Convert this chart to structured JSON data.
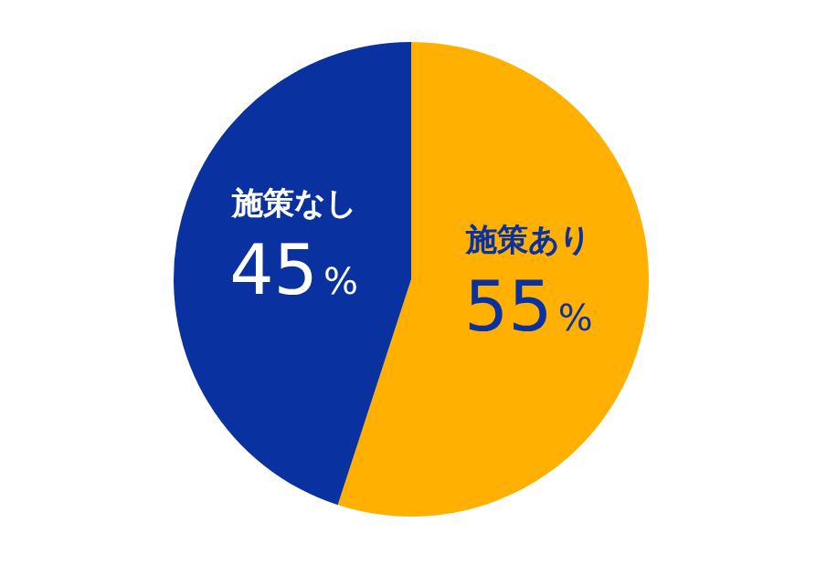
{
  "chart_data": {
    "type": "pie",
    "categories": [
      "施策あり",
      "施策なし"
    ],
    "values": [
      55,
      45
    ],
    "colors": [
      "#ffb000",
      "#0a31a0"
    ],
    "value_labels": [
      "55%",
      "45%"
    ]
  }
}
